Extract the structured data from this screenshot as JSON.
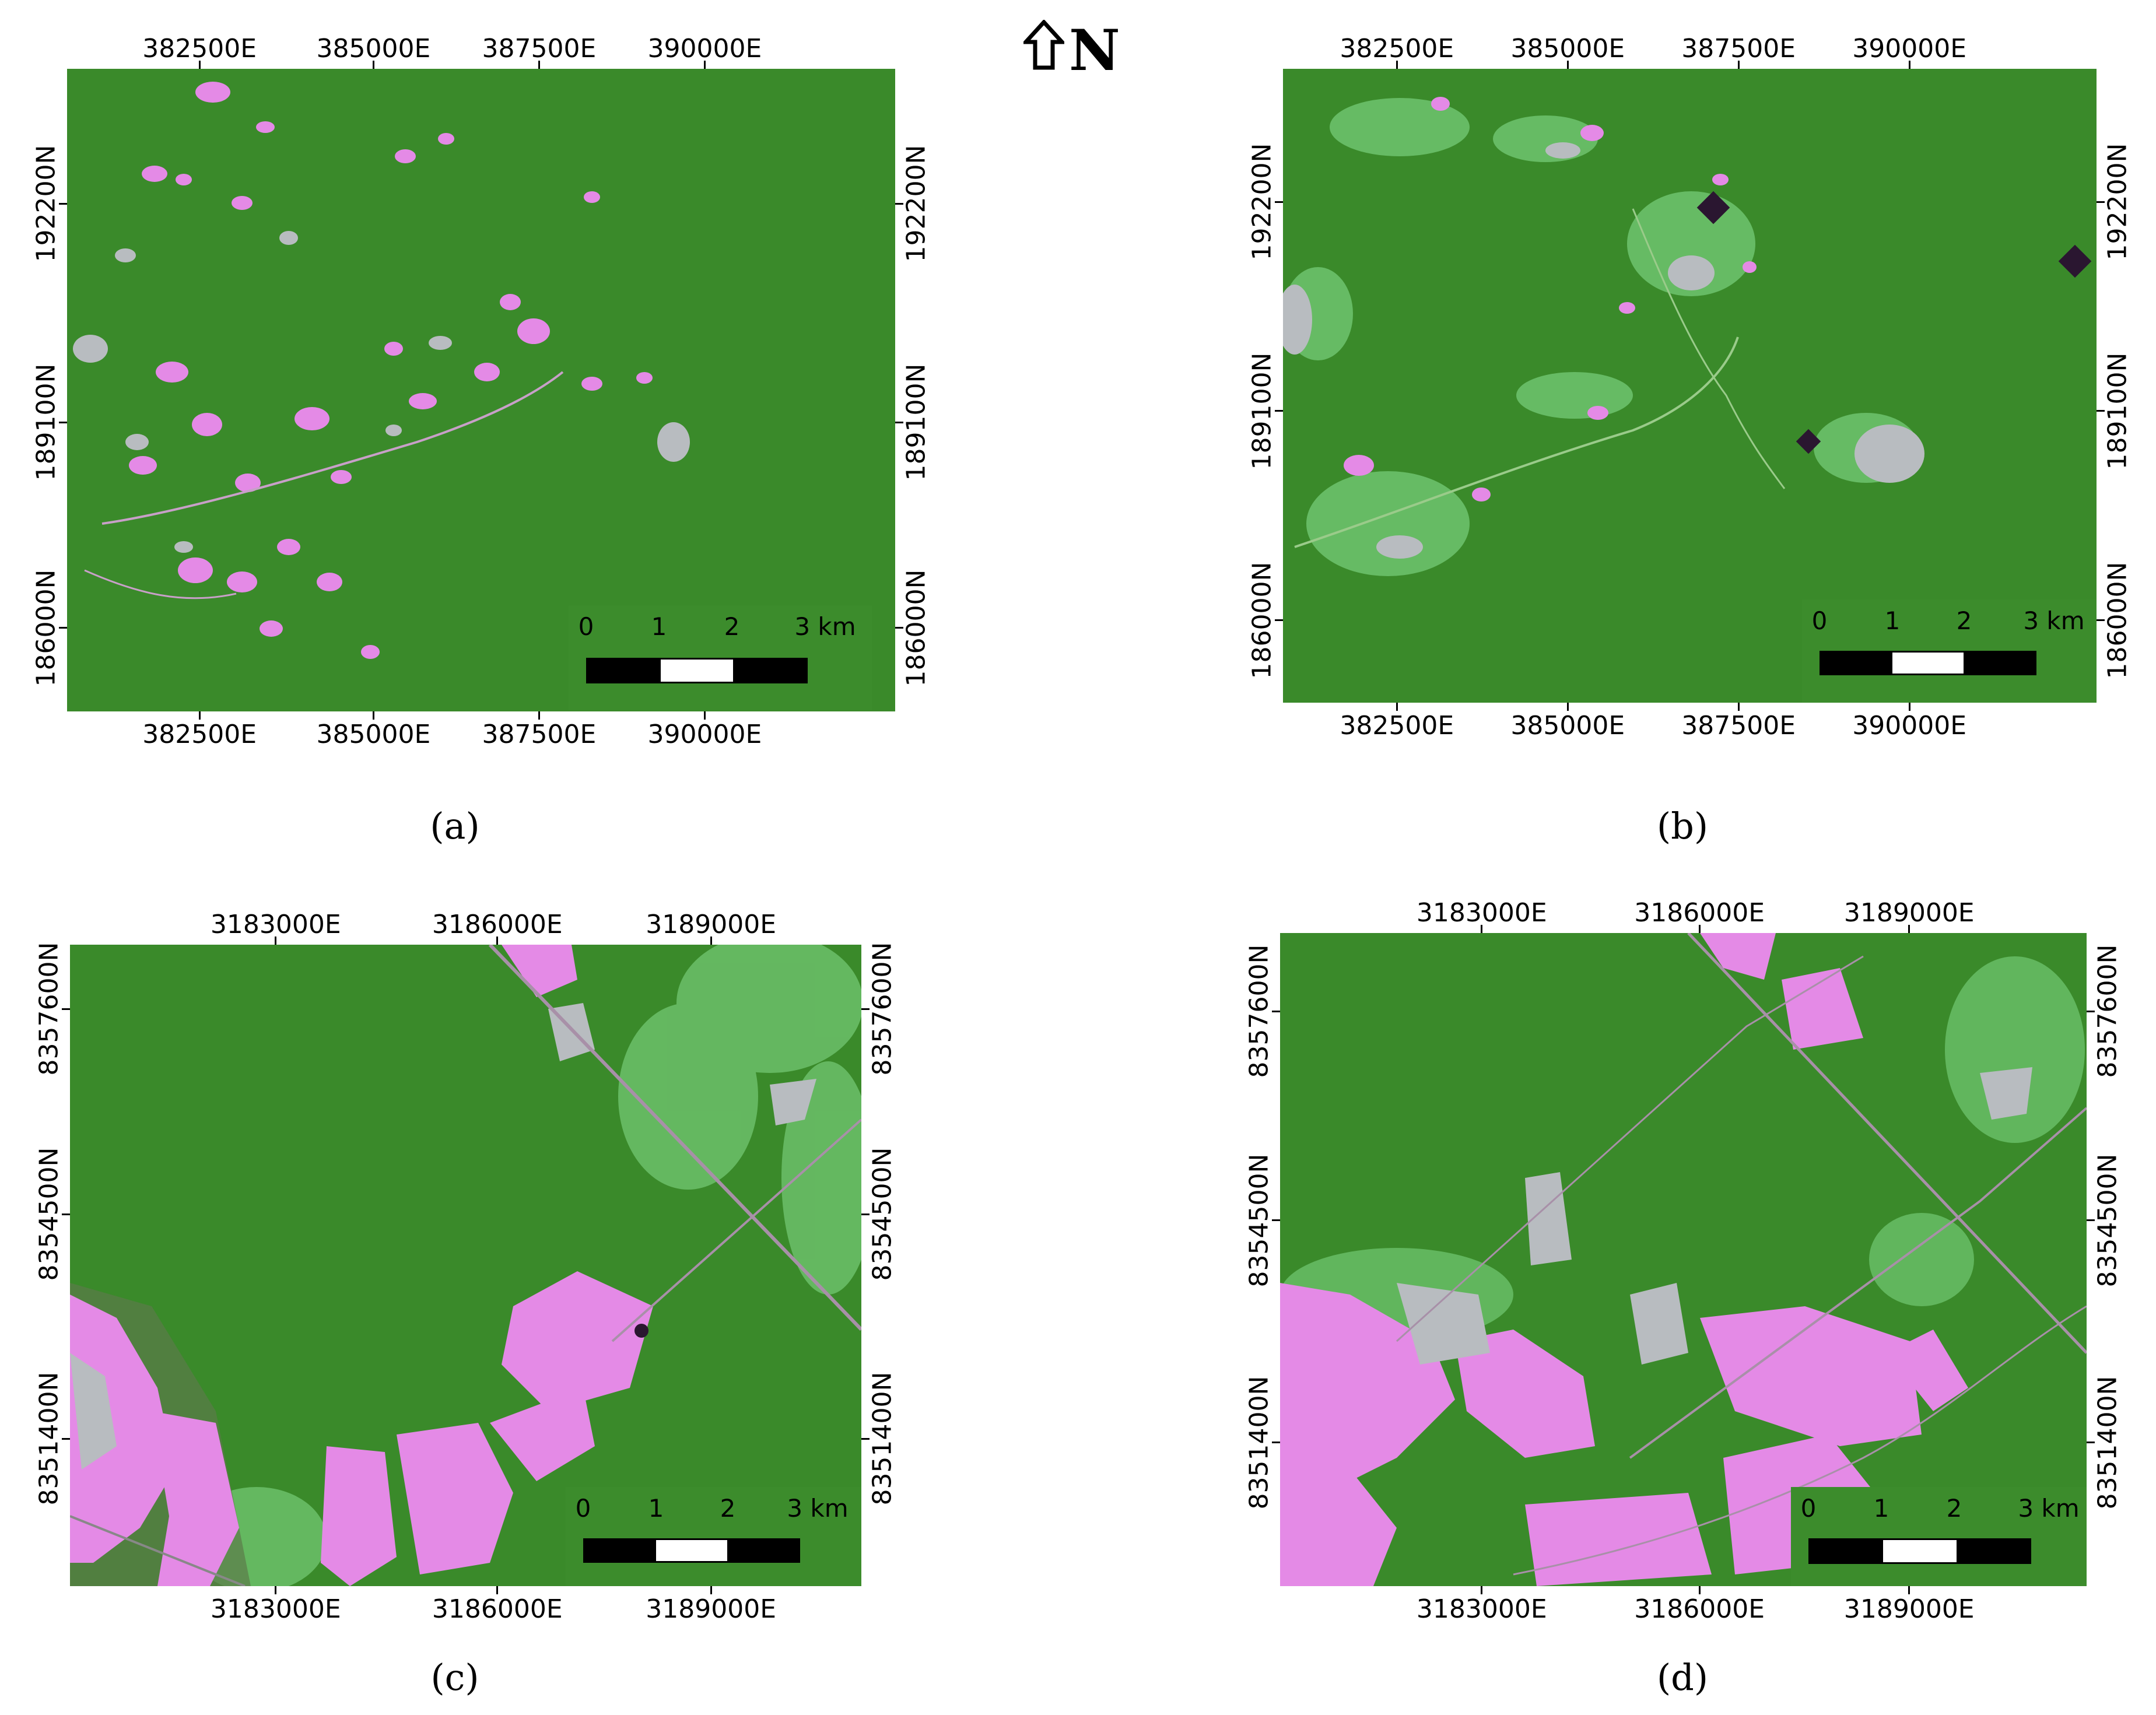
{
  "north_arrow": {
    "icon": "north-arrow-icon",
    "label": "N"
  },
  "scale_bar_labels": [
    "0",
    "1",
    "2",
    "3 km"
  ],
  "colors": {
    "forest": "#3a8a2a",
    "regrowth": "#6cc06a",
    "deforested": "#e48ae6",
    "nonforest": "#b8bcc0",
    "marker": "#2a1630"
  },
  "panels": [
    {
      "caption": "(a)",
      "x_ticks": [
        "382500E",
        "385000E",
        "387500E",
        "390000E"
      ],
      "y_ticks": [
        "192200N",
        "189100N",
        "186000N"
      ]
    },
    {
      "caption": "(b)",
      "x_ticks": [
        "382500E",
        "385000E",
        "387500E",
        "390000E"
      ],
      "y_ticks": [
        "192200N",
        "189100N",
        "186000N"
      ]
    },
    {
      "caption": "(c)",
      "x_ticks": [
        "3183000E",
        "3186000E",
        "3189000E"
      ],
      "y_ticks": [
        "8357600N",
        "8354500N",
        "8351400N"
      ]
    },
    {
      "caption": "(d)",
      "x_ticks": [
        "3183000E",
        "3186000E",
        "3189000E"
      ],
      "y_ticks": [
        "8357600N",
        "8354500N",
        "8351400N"
      ]
    }
  ]
}
